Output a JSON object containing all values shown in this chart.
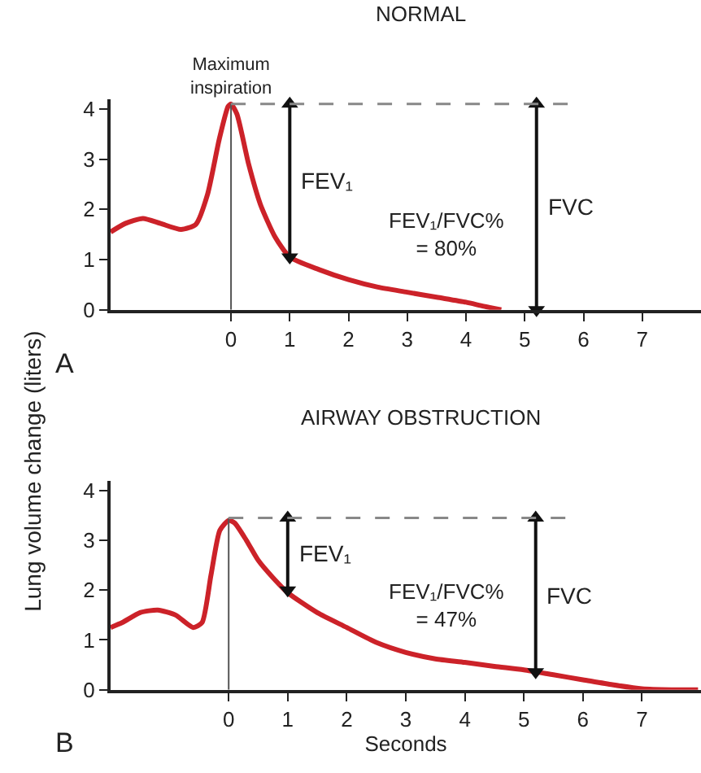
{
  "chart_data": [
    {
      "type": "line",
      "title": "NORMAL",
      "ylabel": "Lung volume change (liters)",
      "xlim": [
        -2.05,
        8.0
      ],
      "ylim": [
        0,
        4.2
      ],
      "xticks": [
        0,
        1,
        2,
        3,
        4,
        5,
        6,
        7
      ],
      "yticks": [
        0,
        1,
        2,
        3,
        4
      ],
      "legend": false,
      "marker": "none",
      "line_style": "solid",
      "series": [
        {
          "color": "#cc2229",
          "x": [
            -2.05,
            -1.8,
            -1.5,
            -1.2,
            -0.85,
            -0.6,
            -0.4,
            -0.2,
            -0.05,
            0,
            0.1,
            0.3,
            0.5,
            0.75,
            1,
            1.5,
            2,
            2.5,
            3,
            3.5,
            4,
            4.3,
            4.6
          ],
          "values": [
            1.55,
            1.72,
            1.82,
            1.72,
            1.6,
            1.7,
            2.3,
            3.4,
            4.05,
            4.1,
            3.9,
            2.9,
            2.1,
            1.45,
            1.05,
            0.8,
            0.6,
            0.45,
            0.35,
            0.25,
            0.15,
            0.07,
            0.0
          ]
        },
        {
          "name": "FEV₁",
          "color": "#111111",
          "marker": "triangle",
          "x": [
            1,
            1
          ],
          "values": [
            4.1,
            1.05
          ]
        },
        {
          "name": "FVC",
          "color": "#111111",
          "marker": "triangle",
          "x": [
            5.2,
            5.2
          ],
          "values": [
            4.1,
            0.0
          ]
        }
      ],
      "ref_lines": [
        {
          "axis": "x",
          "value": 0,
          "color": "#555555",
          "line_style": "solid"
        },
        {
          "axis": "y",
          "value": 4.1,
          "color": "#888888",
          "line_style": "dashed"
        }
      ],
      "annotations": [
        {
          "text": "Maximum\ninspiration",
          "x": 0,
          "y": 4.1
        },
        "FEV₁/FVC%\n= 80%",
        "A"
      ]
    },
    {
      "type": "line",
      "title": "AIRWAY OBSTRUCTION",
      "xlabel": "Seconds",
      "xlim": [
        -2.0,
        8.0
      ],
      "ylim": [
        0,
        4.2
      ],
      "xticks": [
        0,
        1,
        2,
        3,
        4,
        5,
        6,
        7
      ],
      "yticks": [
        0,
        1,
        2,
        3,
        4
      ],
      "legend": false,
      "marker": "none",
      "line_style": "solid",
      "series": [
        {
          "color": "#cc2229",
          "x": [
            -2.0,
            -1.8,
            -1.5,
            -1.2,
            -0.9,
            -0.6,
            -0.45,
            -0.3,
            -0.15,
            0,
            0.1,
            0.3,
            0.5,
            0.75,
            1,
            1.5,
            2,
            2.5,
            3,
            3.5,
            4,
            4.5,
            5,
            5.5,
            6,
            6.5,
            7,
            7.5,
            7.95
          ],
          "values": [
            1.25,
            1.35,
            1.55,
            1.6,
            1.5,
            1.25,
            1.35,
            2.3,
            3.2,
            3.4,
            3.35,
            3.0,
            2.6,
            2.25,
            1.95,
            1.55,
            1.25,
            0.95,
            0.75,
            0.62,
            0.55,
            0.47,
            0.4,
            0.3,
            0.2,
            0.1,
            0.02,
            0.0,
            0.0
          ]
        },
        {
          "name": "FEV₁",
          "color": "#111111",
          "marker": "triangle",
          "x": [
            1,
            1
          ],
          "values": [
            3.45,
            2.0
          ]
        },
        {
          "name": "FVC",
          "color": "#111111",
          "marker": "triangle",
          "x": [
            5.2,
            5.2
          ],
          "values": [
            3.45,
            0.36
          ]
        }
      ],
      "ref_lines": [
        {
          "axis": "x",
          "value": 0,
          "color": "#555555",
          "line_style": "solid"
        },
        {
          "axis": "y",
          "value": 3.45,
          "color": "#888888",
          "line_style": "dashed"
        }
      ],
      "annotations": [
        "FEV₁/FVC%\n= 47%",
        "B"
      ]
    }
  ]
}
